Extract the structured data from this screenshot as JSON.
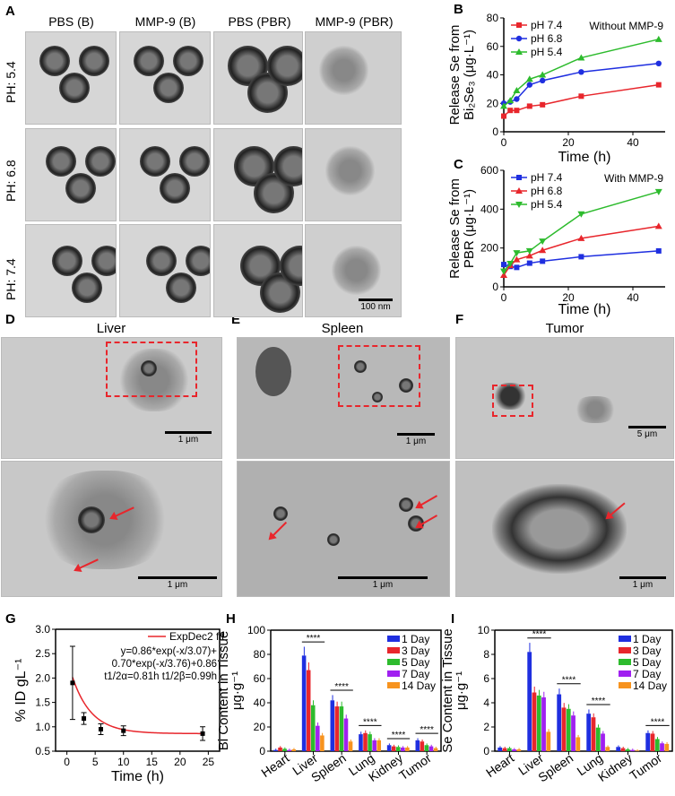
{
  "panels": {
    "A": "A",
    "B": "B",
    "C": "C",
    "D": "D",
    "E": "E",
    "F": "F",
    "G": "G",
    "H": "H",
    "I": "I"
  },
  "panelA": {
    "columns": [
      "PBS (B)",
      "MMP-9 (B)",
      "PBS (PBR)",
      "MMP-9 (PBR)"
    ],
    "rows": [
      "PH: 5.4",
      "PH: 6.8",
      "PH: 7.4"
    ],
    "scale_bar": "100 nm"
  },
  "panelD": {
    "title": "Liver",
    "scale_top": "1 μm",
    "scale_bottom": "1 μm"
  },
  "panelE": {
    "title": "Spleen",
    "scale_top": "1 μm",
    "scale_bottom": "1 μm"
  },
  "panelF": {
    "title": "Tumor",
    "scale_top": "5 μm",
    "scale_bottom": "1 μm"
  },
  "colors": {
    "red": "#e8262c",
    "blue": "#1f2fe0",
    "green": "#2dbb2d",
    "purple": "#a020f0",
    "orange": "#f7931e"
  },
  "chart_data": [
    {
      "id": "B",
      "type": "line",
      "annotation": "Without MMP-9",
      "xlabel": "Time (h)",
      "ylabel": [
        "Release Se from",
        "Bi₂Se₃ (μg·L⁻¹)"
      ],
      "xlim": [
        0,
        50
      ],
      "ylim": [
        0,
        80
      ],
      "xticks": [
        0,
        20,
        40
      ],
      "yticks": [
        0,
        20,
        40,
        60,
        80
      ],
      "x": [
        0,
        2,
        4,
        8,
        12,
        24,
        48
      ],
      "series": [
        {
          "name": "pH 7.4",
          "color": "#e8262c",
          "marker": "square",
          "values": [
            11,
            15,
            15,
            18,
            19,
            25,
            33
          ]
        },
        {
          "name": "pH 6.8",
          "color": "#1f2fe0",
          "marker": "circle",
          "values": [
            20,
            21,
            23,
            33,
            36,
            42,
            48
          ]
        },
        {
          "name": "pH 5.4",
          "color": "#2dbb2d",
          "marker": "triangle",
          "values": [
            18,
            22,
            29,
            37,
            40,
            52,
            65
          ]
        }
      ]
    },
    {
      "id": "C",
      "type": "line",
      "annotation": "With MMP-9",
      "xlabel": "Time (h)",
      "ylabel": [
        "Release Se from",
        "PBR (μg·L⁻¹)"
      ],
      "xlim": [
        0,
        50
      ],
      "ylim": [
        0,
        600
      ],
      "xticks": [
        0,
        20,
        40
      ],
      "yticks": [
        0,
        200,
        400,
        600
      ],
      "x": [
        0,
        2,
        4,
        8,
        12,
        24,
        48
      ],
      "series": [
        {
          "name": "pH 7.4",
          "color": "#1f2fe0",
          "marker": "square",
          "values": [
            115,
            105,
            100,
            122,
            132,
            155,
            185
          ]
        },
        {
          "name": "pH 6.8",
          "color": "#e8262c",
          "marker": "triangle",
          "values": [
            60,
            110,
            140,
            160,
            188,
            250,
            312
          ]
        },
        {
          "name": "pH 5.4",
          "color": "#2dbb2d",
          "marker": "triangle-down",
          "values": [
            80,
            120,
            175,
            185,
            235,
            375,
            490
          ]
        }
      ]
    },
    {
      "id": "G",
      "type": "scatter",
      "xlabel": "Time (h)",
      "ylabel": "% ID gL⁻¹",
      "xlim": [
        -2,
        27
      ],
      "ylim": [
        0.5,
        3.0
      ],
      "xticks": [
        0,
        5,
        10,
        15,
        20,
        25
      ],
      "yticks": [
        0.5,
        1.0,
        1.5,
        2.0,
        2.5,
        3.0
      ],
      "x": [
        1,
        3,
        6,
        10,
        24
      ],
      "y": [
        1.9,
        1.17,
        0.95,
        0.92,
        0.86
      ],
      "error": [
        0.75,
        0.12,
        0.11,
        0.1,
        0.14
      ],
      "fit": {
        "name": "ExpDec2 fit",
        "a1": 0.86,
        "t1": 3.07,
        "a2": 0.7,
        "t2": 3.76,
        "y0": 0.86,
        "color": "#e8262c"
      },
      "annotations": [
        "y=0.86*exp(-x/3.07)+",
        "0.70*exp(-x/3.76)+0.86",
        "t1/2α=0.81h  t1/2β=0.99h"
      ]
    },
    {
      "id": "H",
      "type": "bar",
      "ylabel": [
        "Bi Content in Tissue",
        "μg·g⁻¹"
      ],
      "ylim": [
        0,
        100
      ],
      "yticks": [
        0,
        20,
        40,
        60,
        80,
        100
      ],
      "significance": "****",
      "categories": [
        "Heart",
        "Liver",
        "Spleen",
        "Lung",
        "Kidney",
        "Tumor"
      ],
      "series": [
        {
          "name": "1 Day",
          "color": "#1f2fe0",
          "values": [
            1,
            79,
            42,
            14,
            5,
            9
          ]
        },
        {
          "name": "3 Day",
          "color": "#e8262c",
          "values": [
            3,
            67,
            37,
            15,
            4,
            8
          ]
        },
        {
          "name": "5 Day",
          "color": "#2dbb2d",
          "values": [
            2,
            38,
            37,
            14,
            3.5,
            5
          ]
        },
        {
          "name": "7 Day",
          "color": "#a020f0",
          "values": [
            1,
            21,
            27,
            9,
            3,
            4
          ]
        },
        {
          "name": "14 Day",
          "color": "#f7931e",
          "values": [
            1.5,
            13,
            8,
            9,
            3,
            2.5
          ]
        }
      ]
    },
    {
      "id": "I",
      "type": "bar",
      "ylabel": [
        "Se Content in Tissue",
        "μg·g⁻¹"
      ],
      "ylim": [
        0,
        10
      ],
      "yticks": [
        0,
        2,
        4,
        6,
        8,
        10
      ],
      "significance": "****",
      "categories": [
        "Heart",
        "Liver",
        "Spleen",
        "Lung",
        "Kidney",
        "Tumor"
      ],
      "series": [
        {
          "name": "1 Day",
          "color": "#1f2fe0",
          "values": [
            0.3,
            8.2,
            4.7,
            3.1,
            0.35,
            1.5
          ]
        },
        {
          "name": "3 Day",
          "color": "#e8262c",
          "values": [
            0.25,
            4.85,
            3.6,
            2.8,
            0.25,
            1.45
          ]
        },
        {
          "name": "5 Day",
          "color": "#2dbb2d",
          "values": [
            0.25,
            4.6,
            3.5,
            1.95,
            0.15,
            1.0
          ]
        },
        {
          "name": "7 Day",
          "color": "#a020f0",
          "values": [
            0.15,
            4.45,
            2.95,
            1.45,
            0.1,
            0.65
          ]
        },
        {
          "name": "14 Day",
          "color": "#f7931e",
          "values": [
            0.15,
            1.6,
            1.15,
            0.35,
            0.05,
            0.6
          ]
        }
      ]
    }
  ]
}
